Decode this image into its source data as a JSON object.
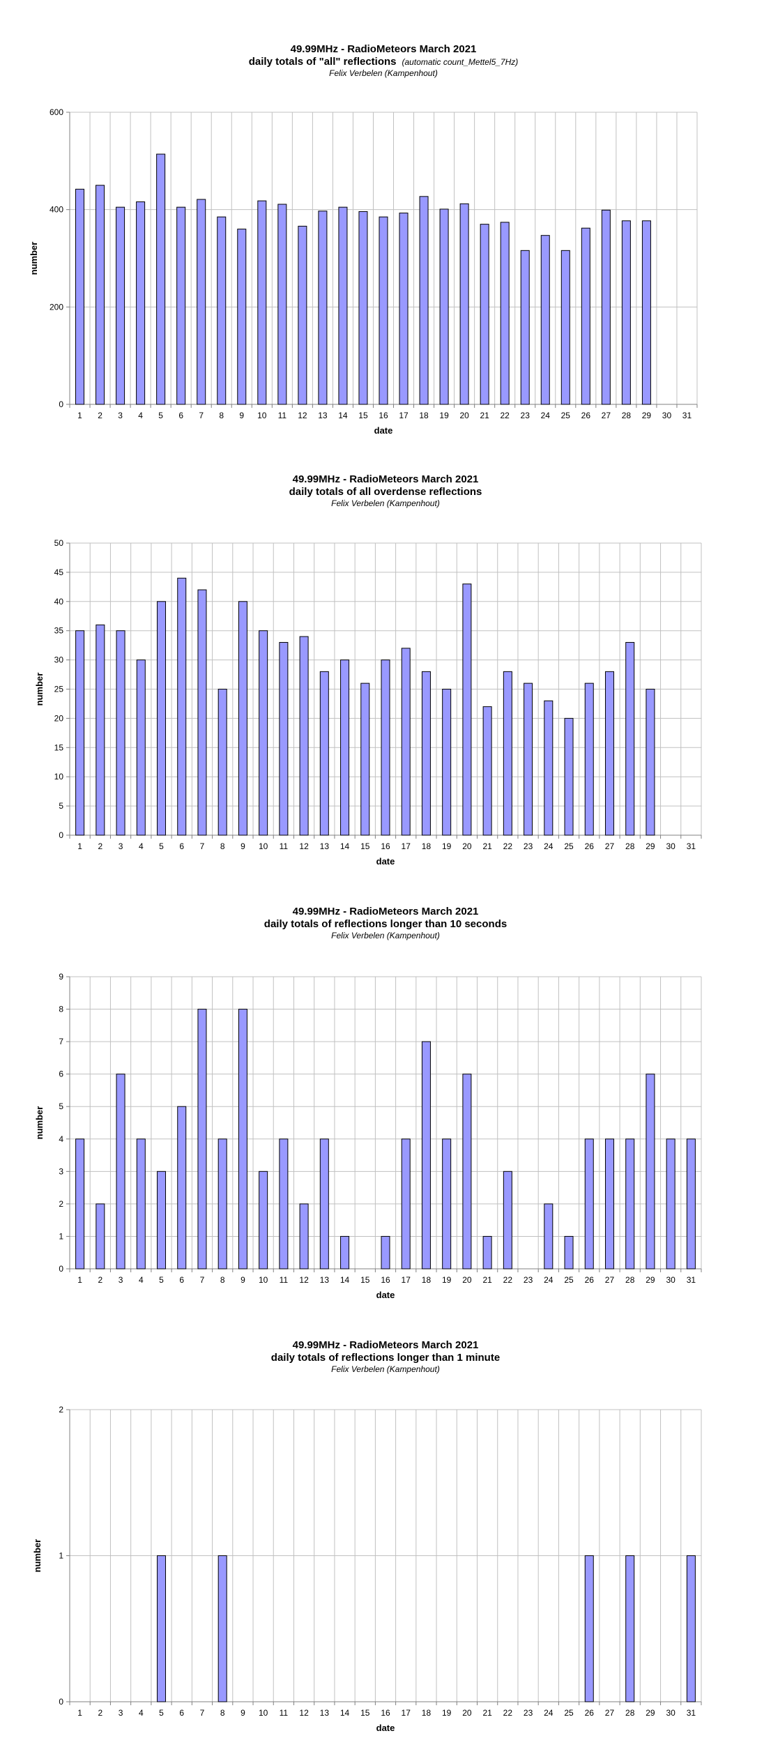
{
  "colors": {
    "bar_fill": "#9999FF",
    "bar_stroke": "#000000",
    "grid": "#C0C0C0",
    "axis": "#808080"
  },
  "chart_data": [
    {
      "type": "bar",
      "title": "49.99MHz - RadioMeteors March 2021",
      "subtitle": "daily totals of \"all\" reflections",
      "subtitle_note": "(automatic count_Mettel5_7Hz)",
      "author": "Felix Verbelen (Kampenhout)",
      "xlabel": "date",
      "ylabel": "number",
      "ylim": [
        0,
        600
      ],
      "yticks": [
        0,
        200,
        400,
        600
      ],
      "grid": true,
      "categories": [
        "1",
        "2",
        "3",
        "4",
        "5",
        "6",
        "7",
        "8",
        "9",
        "10",
        "11",
        "12",
        "13",
        "14",
        "15",
        "16",
        "17",
        "18",
        "19",
        "20",
        "21",
        "22",
        "23",
        "24",
        "25",
        "26",
        "27",
        "28",
        "29",
        "30",
        "31"
      ],
      "values": [
        442,
        450,
        405,
        416,
        514,
        405,
        421,
        385,
        360,
        418,
        411,
        366,
        397,
        405,
        396,
        385,
        393,
        427,
        401,
        412,
        370,
        374,
        316,
        347,
        316,
        362,
        399,
        377,
        377,
        null,
        null
      ]
    },
    {
      "type": "bar",
      "title": "49.99MHz - RadioMeteors March 2021",
      "subtitle": "daily totals of all overdense reflections",
      "author": "Felix Verbelen (Kampenhout)",
      "xlabel": "date",
      "ylabel": "number",
      "ylim": [
        0,
        50
      ],
      "yticks": [
        0,
        5,
        10,
        15,
        20,
        25,
        30,
        35,
        40,
        45,
        50
      ],
      "grid": true,
      "categories": [
        "1",
        "2",
        "3",
        "4",
        "5",
        "6",
        "7",
        "8",
        "9",
        "10",
        "11",
        "12",
        "13",
        "14",
        "15",
        "16",
        "17",
        "18",
        "19",
        "20",
        "21",
        "22",
        "23",
        "24",
        "25",
        "26",
        "27",
        "28",
        "29",
        "30",
        "31"
      ],
      "values": [
        35,
        36,
        35,
        30,
        40,
        44,
        42,
        25,
        40,
        35,
        33,
        34,
        28,
        30,
        26,
        30,
        32,
        28,
        25,
        43,
        22,
        28,
        26,
        23,
        20,
        26,
        28,
        33,
        25,
        null,
        null
      ]
    },
    {
      "type": "bar",
      "title": "49.99MHz - RadioMeteors March 2021",
      "subtitle": "daily totals of reflections longer than 10 seconds",
      "author": "Felix Verbelen (Kampenhout)",
      "xlabel": "date",
      "ylabel": "number",
      "ylim": [
        0,
        9
      ],
      "yticks": [
        0,
        1,
        2,
        3,
        4,
        5,
        6,
        7,
        8,
        9
      ],
      "grid": true,
      "categories": [
        "1",
        "2",
        "3",
        "4",
        "5",
        "6",
        "7",
        "8",
        "9",
        "10",
        "11",
        "12",
        "13",
        "14",
        "15",
        "16",
        "17",
        "18",
        "19",
        "20",
        "21",
        "22",
        "23",
        "24",
        "25",
        "26",
        "27",
        "28",
        "29",
        "30",
        "31"
      ],
      "values": [
        4,
        2,
        6,
        4,
        3,
        5,
        8,
        4,
        8,
        3,
        4,
        2,
        4,
        1,
        0,
        1,
        4,
        7,
        4,
        6,
        1,
        3,
        0,
        2,
        1,
        4,
        4,
        4,
        6,
        4,
        4
      ]
    },
    {
      "type": "bar",
      "title": "49.99MHz - RadioMeteors March 2021",
      "subtitle": "daily totals of reflections longer than 1 minute",
      "author": "Felix Verbelen (Kampenhout)",
      "xlabel": "date",
      "ylabel": "number",
      "ylim": [
        0,
        2
      ],
      "yticks": [
        0,
        1,
        2
      ],
      "grid": true,
      "categories": [
        "1",
        "2",
        "3",
        "4",
        "5",
        "6",
        "7",
        "8",
        "9",
        "10",
        "11",
        "12",
        "13",
        "14",
        "15",
        "16",
        "17",
        "18",
        "19",
        "20",
        "21",
        "22",
        "23",
        "24",
        "25",
        "26",
        "27",
        "28",
        "29",
        "30",
        "31"
      ],
      "values": [
        0,
        0,
        0,
        0,
        1,
        0,
        0,
        1,
        0,
        0,
        0,
        0,
        0,
        0,
        0,
        0,
        0,
        0,
        0,
        0,
        0,
        0,
        0,
        0,
        0,
        1,
        0,
        1,
        0,
        0,
        1
      ]
    }
  ]
}
